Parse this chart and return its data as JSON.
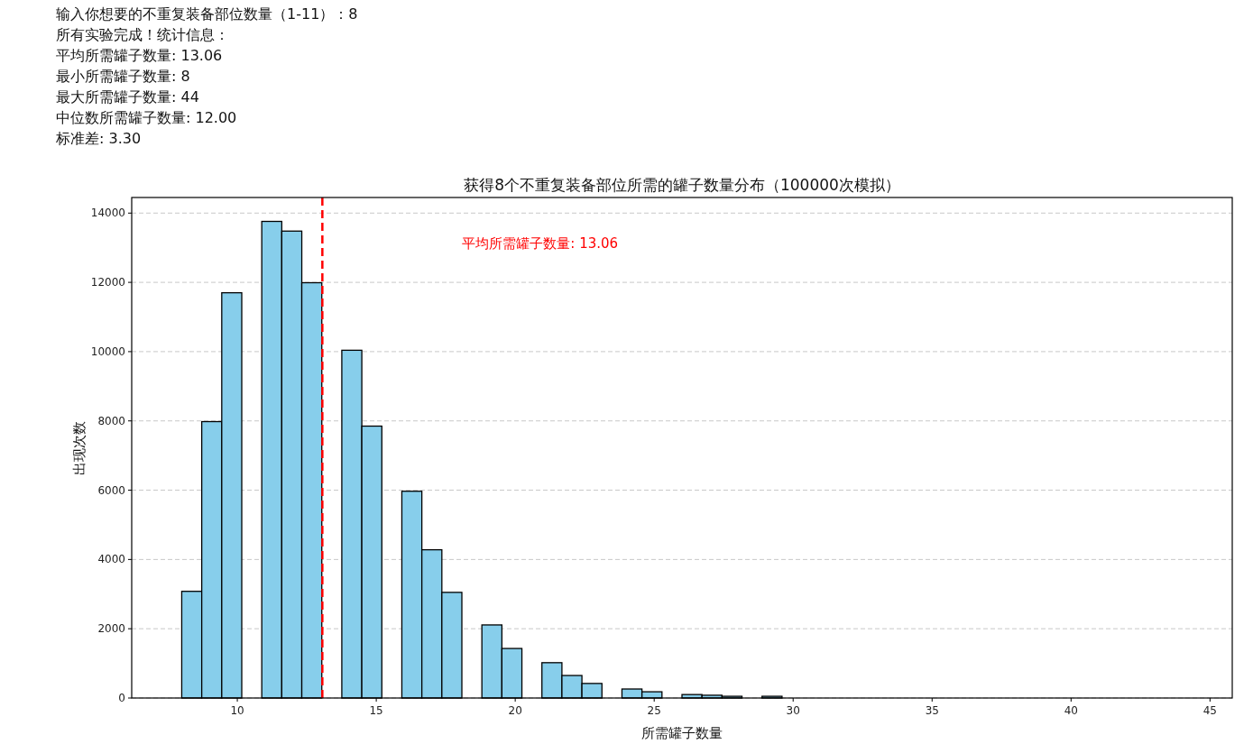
{
  "chart_data": {
    "type": "histogram",
    "title": "获得8个不重复装备部位所需的罐子数量分布（100000次模拟）",
    "xlabel": "所需罐子数量",
    "ylabel": "出现次数",
    "annotations": [
      "输入你想要的不重复装备部位数量（1-11）：8",
      "所有实验完成！统计信息：",
      "平均所需罐子数量: 13.06",
      "最小所需罐子数量: 8",
      "最大所需罐子数量: 44",
      "中位数所需罐子数量: 12.00",
      "标准差: 3.30"
    ],
    "bins": [
      8,
      8.72,
      9.44,
      10.16,
      10.88,
      11.6,
      12.32,
      13.04,
      13.76,
      14.48,
      15.2,
      15.92,
      16.64,
      17.36,
      18.08,
      18.8,
      19.52,
      20.24,
      20.96,
      21.68,
      22.4,
      23.12,
      23.84,
      24.56,
      25.28,
      26,
      26.72,
      27.44,
      28.16,
      28.88,
      29.6,
      30.32,
      31.04,
      31.76,
      32.48,
      33.2,
      33.92,
      34.64,
      35.36,
      36.08,
      36.8,
      37.52,
      38.24,
      38.96,
      39.68,
      40.4,
      41.12,
      41.84,
      42.56,
      43.28,
      44
    ],
    "values": [
      3080,
      7980,
      11700,
      0,
      13760,
      13480,
      11990,
      0,
      10040,
      7850,
      0,
      5970,
      4280,
      3050,
      0,
      2110,
      1430,
      0,
      1020,
      650,
      420,
      0,
      260,
      180,
      0,
      100,
      80,
      50,
      0,
      50,
      0,
      0,
      0,
      0,
      0,
      0,
      0,
      0,
      0,
      0,
      0,
      0,
      0,
      0,
      0,
      0,
      0,
      0,
      0,
      0
    ],
    "color": "#87ceeb",
    "xlim": [
      6.2,
      45.8
    ],
    "xticks": [
      10,
      15,
      20,
      25,
      30,
      35,
      40,
      45
    ],
    "ylim": [
      0,
      14450
    ],
    "yticks": [
      0,
      2000,
      4000,
      6000,
      8000,
      10000,
      12000,
      14000
    ],
    "grid": "y",
    "ref_lines": [
      {
        "axis": "x",
        "value": 13.06,
        "label": "平均所需罐子数量: 13.06",
        "color": "#ff0000",
        "line_style": "dashed"
      }
    ]
  }
}
